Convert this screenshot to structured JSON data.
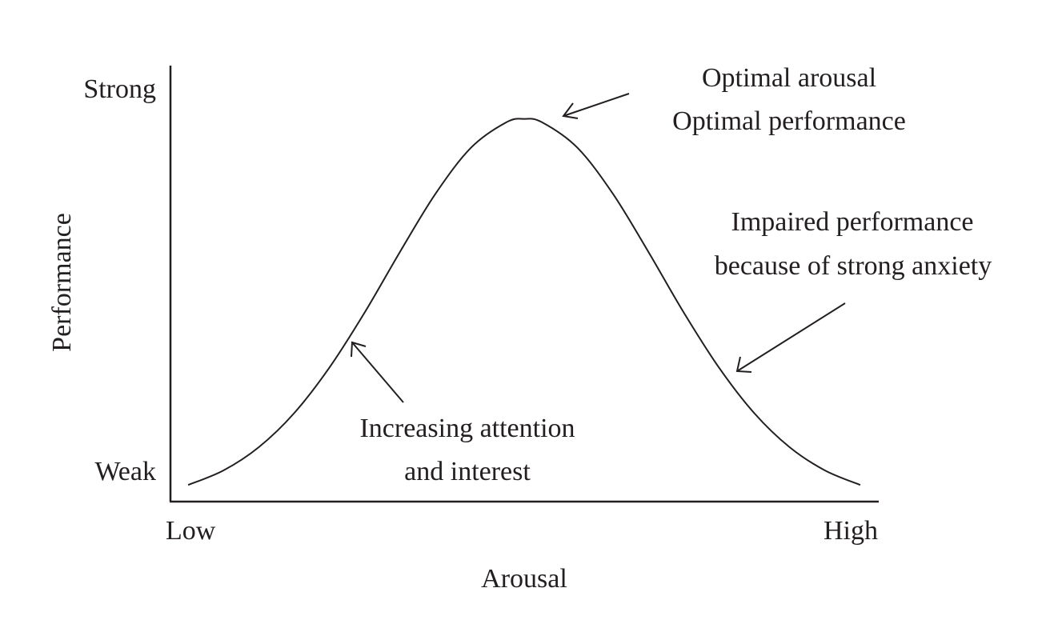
{
  "chart_data": {
    "type": "line",
    "title": "",
    "xlabel": "Arousal",
    "ylabel": "Performance",
    "x_tick_labels": [
      "Low",
      "High"
    ],
    "y_tick_labels": [
      "Weak",
      "Strong"
    ],
    "xlim": [
      0,
      1
    ],
    "ylim": [
      0,
      1
    ],
    "grid": false,
    "line_color": "#231f20",
    "series": [
      {
        "x": [
          0.025,
          0.075,
          0.125,
          0.175,
          0.225,
          0.275,
          0.325,
          0.375,
          0.425,
          0.475,
          0.5,
          0.525,
          0.575,
          0.625,
          0.675,
          0.725,
          0.775,
          0.825,
          0.875,
          0.925,
          0.975
        ],
        "y": [
          0.04,
          0.075,
          0.131,
          0.213,
          0.323,
          0.456,
          0.602,
          0.741,
          0.851,
          0.912,
          0.92,
          0.912,
          0.851,
          0.741,
          0.602,
          0.456,
          0.323,
          0.213,
          0.131,
          0.075,
          0.04
        ]
      }
    ],
    "annotations": [
      {
        "lines": [
          "Optimal arousal",
          "Optimal performance"
        ],
        "points_to": "peak"
      },
      {
        "lines": [
          "Impaired performance",
          "because of strong anxiety"
        ],
        "points_to": "descending slope"
      },
      {
        "lines": [
          "Increasing attention",
          "and interest"
        ],
        "points_to": "ascending slope"
      }
    ]
  }
}
